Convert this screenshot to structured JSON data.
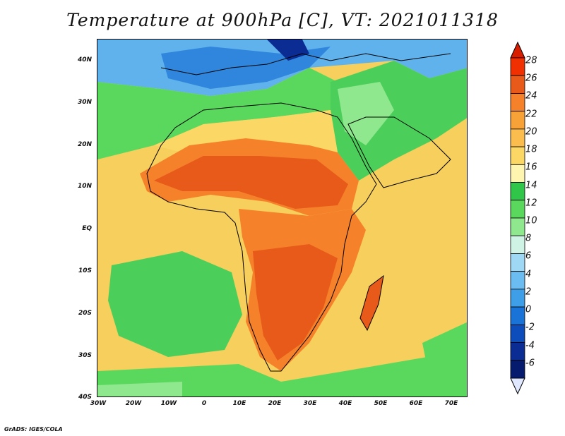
{
  "title": "Temperature at 900hPa [C], VT: 2021011318",
  "credit": "GrADS: IGES/COLA",
  "map": {
    "lat_labels": [
      "40N",
      "30N",
      "20N",
      "10N",
      "EQ",
      "10S",
      "20S",
      "30S",
      "40S"
    ],
    "lon_labels": [
      "30W",
      "20W",
      "10W",
      "0",
      "10E",
      "20E",
      "30E",
      "40E",
      "50E",
      "60E",
      "70E"
    ],
    "lat_range": [
      -40,
      44
    ],
    "lon_range": [
      -30,
      75
    ]
  },
  "colorbar": {
    "labels": [
      "28",
      "26",
      "24",
      "22",
      "20",
      "18",
      "16",
      "14",
      "12",
      "10",
      "8",
      "6",
      "4",
      "2",
      "0",
      "-2",
      "-4",
      "-6"
    ],
    "colors": [
      "#f03000",
      "#e85a1a",
      "#f5822a",
      "#f7a238",
      "#fabd4e",
      "#fbd866",
      "#fef5b0",
      "#2fc64a",
      "#5ad85e",
      "#8fe88e",
      "#cff4e6",
      "#9fd8f5",
      "#6bbcf0",
      "#3f9ee8",
      "#1a74d8",
      "#0c4cbb",
      "#0a2c93",
      "#061a6e"
    ],
    "top_triangle_color": "#d81e00",
    "bottom_triangle_color": "#e0e8ff"
  }
}
